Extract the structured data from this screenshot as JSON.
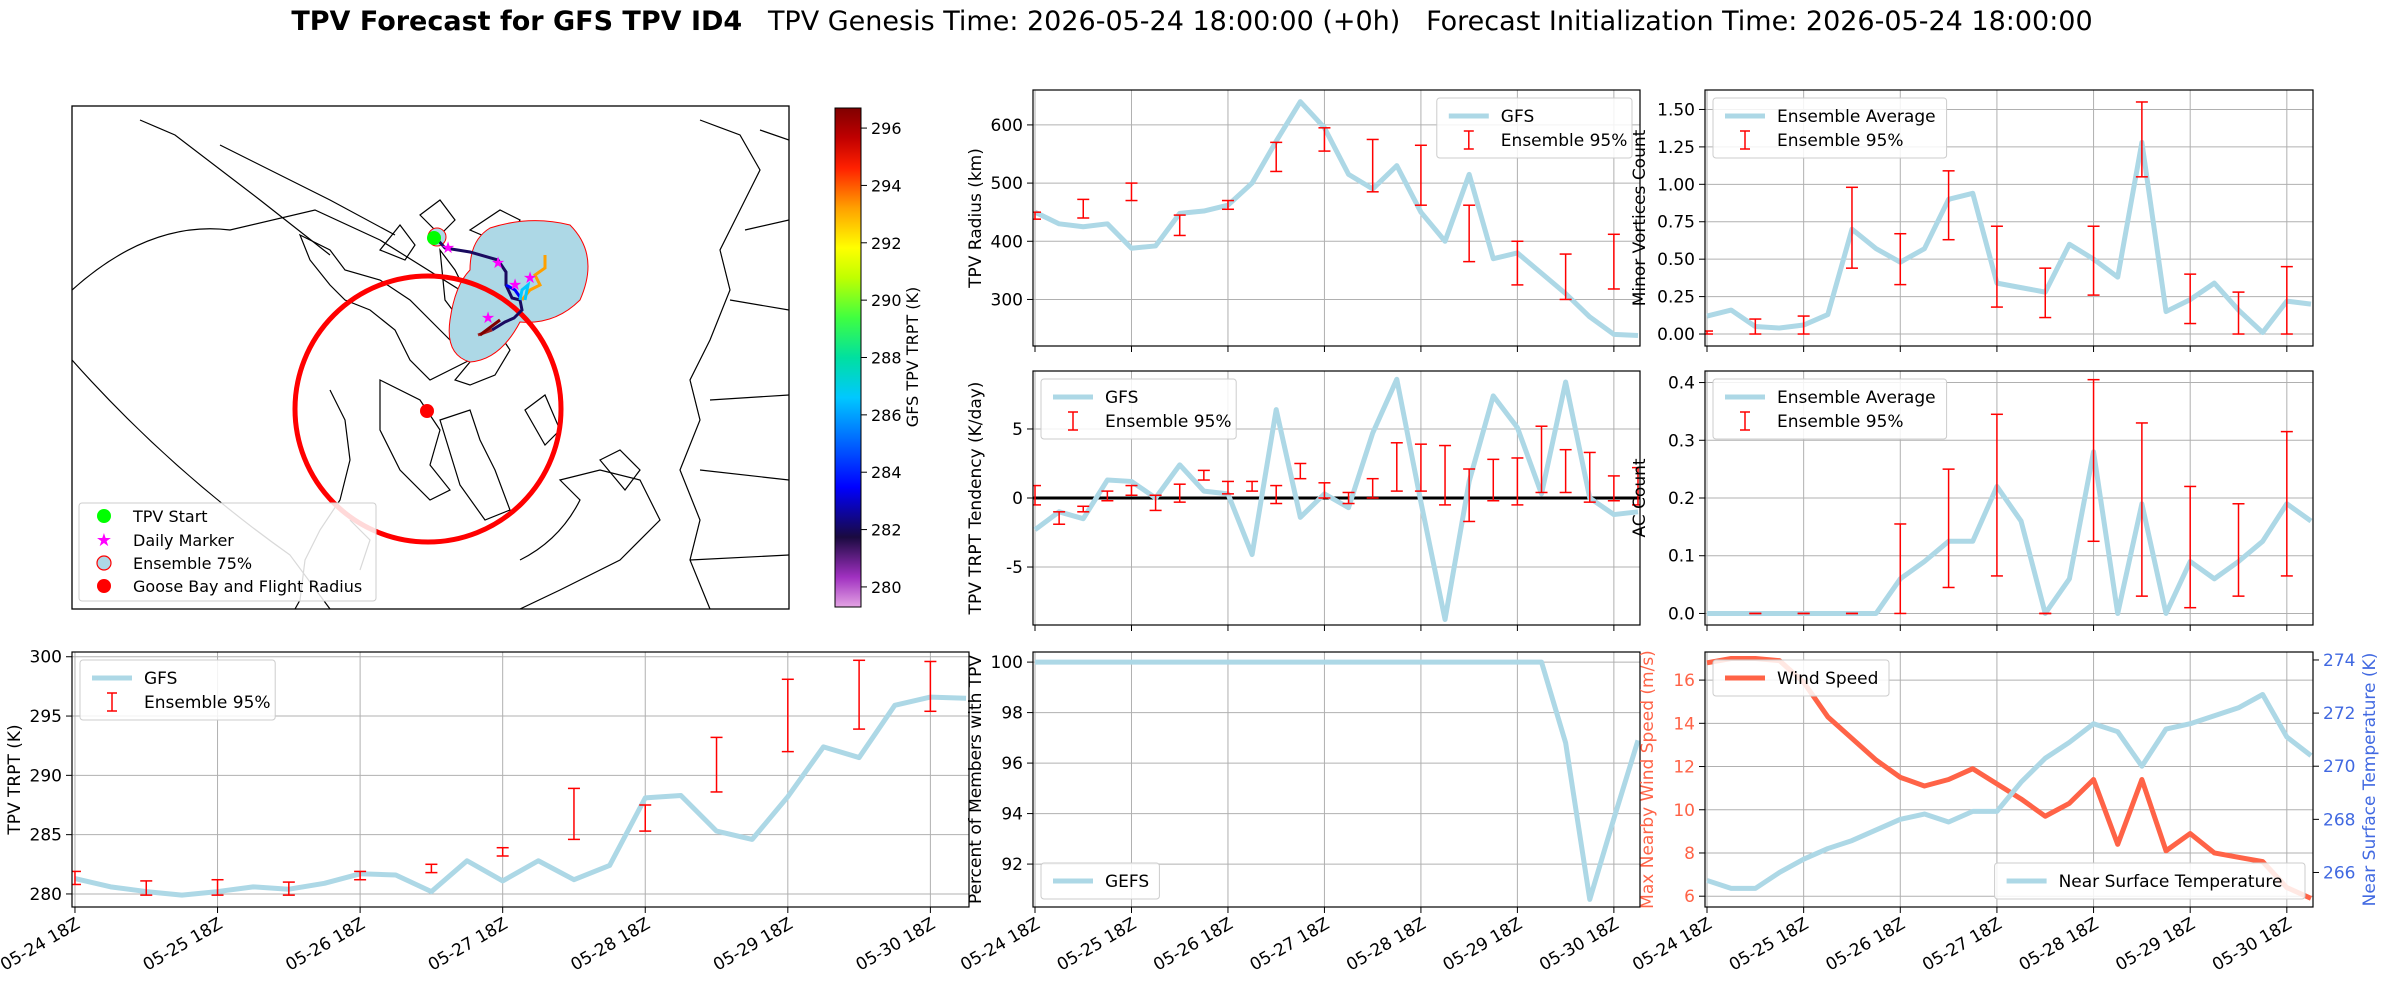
{
  "suptitle": {
    "bold": "TPV Forecast for GFS TPV ID4",
    "genesis": "TPV Genesis Time: 2026-05-24 18:00:00 (+0h)",
    "init": "Forecast Initialization Time: 2026-05-24 18:00:00"
  },
  "time_ticks": [
    "05-24 18Z",
    "05-25 18Z",
    "05-26 18Z",
    "05-27 18Z",
    "05-28 18Z",
    "05-29 18Z",
    "05-30 18Z"
  ],
  "colors": {
    "gfs": "#add8e6",
    "error": "#ff0000",
    "wind": "#ff6347",
    "temp_axis": "#4169e1",
    "start": "#00ff00",
    "daily": "#ff00ff"
  },
  "map": {
    "colorbar": {
      "label": "GFS TPV TRPT (K)",
      "ticks": [
        280,
        282,
        284,
        286,
        288,
        290,
        292,
        294,
        296
      ],
      "range": [
        279.3,
        296.7
      ]
    },
    "legend": [
      "TPV Start",
      "Daily Marker",
      "Ensemble 75%",
      "Goose Bay and Flight Radius"
    ]
  },
  "chart_data": [
    {
      "id": "radius",
      "type": "line",
      "ylabel": "TPV Radius (km)",
      "ylim": [
        220,
        660
      ],
      "yticks": [
        300,
        400,
        500,
        600
      ],
      "legend": [
        "GFS",
        "Ensemble 95%"
      ],
      "legend_loc": "upper right",
      "x_hours": [
        0,
        6,
        12,
        18,
        24,
        30,
        36,
        42,
        48,
        54,
        60,
        66,
        72,
        78,
        84,
        90,
        96,
        102,
        108,
        114,
        120,
        126,
        132,
        138,
        144,
        150
      ],
      "values": [
        450,
        430,
        425,
        430,
        388,
        392,
        448,
        452,
        462,
        500,
        572,
        640,
        595,
        515,
        490,
        530,
        450,
        400,
        515,
        370,
        380,
        345,
        310,
        270,
        240,
        238
      ],
      "error_bars": [
        {
          "x": 0,
          "lo": 438,
          "hi": 450
        },
        {
          "x": 12,
          "lo": 440,
          "hi": 472
        },
        {
          "x": 24,
          "lo": 470,
          "hi": 500
        },
        {
          "x": 36,
          "lo": 410,
          "hi": 445
        },
        {
          "x": 48,
          "lo": 455,
          "hi": 470
        },
        {
          "x": 60,
          "lo": 520,
          "hi": 570
        },
        {
          "x": 72,
          "lo": 555,
          "hi": 595
        },
        {
          "x": 84,
          "lo": 485,
          "hi": 575
        },
        {
          "x": 96,
          "lo": 462,
          "hi": 565
        },
        {
          "x": 108,
          "lo": 365,
          "hi": 462
        },
        {
          "x": 120,
          "lo": 325,
          "hi": 400
        },
        {
          "x": 132,
          "lo": 300,
          "hi": 378
        },
        {
          "x": 144,
          "lo": 318,
          "hi": 412
        }
      ]
    },
    {
      "id": "minor",
      "type": "line",
      "ylabel": "Minor Vortices Count",
      "ylim": [
        -0.08,
        1.63
      ],
      "yticks": [
        0.0,
        0.25,
        0.5,
        0.75,
        1.0,
        1.25,
        1.5
      ],
      "legend": [
        "Ensemble Average",
        "Ensemble 95%"
      ],
      "legend_loc": "upper left",
      "x_hours": [
        0,
        6,
        12,
        18,
        24,
        30,
        36,
        42,
        48,
        54,
        60,
        66,
        72,
        78,
        84,
        90,
        96,
        102,
        108,
        114,
        120,
        126,
        132,
        138,
        144,
        150
      ],
      "values": [
        0.12,
        0.16,
        0.05,
        0.04,
        0.06,
        0.13,
        0.7,
        0.57,
        0.48,
        0.57,
        0.9,
        0.94,
        0.34,
        0.31,
        0.28,
        0.6,
        0.5,
        0.38,
        1.28,
        0.15,
        0.23,
        0.34,
        0.16,
        0.01,
        0.22,
        0.2
      ],
      "error_bars": [
        {
          "x": 0,
          "lo": 0,
          "hi": 0.02
        },
        {
          "x": 12,
          "lo": 0,
          "hi": 0.1
        },
        {
          "x": 24,
          "lo": 0,
          "hi": 0.12
        },
        {
          "x": 36,
          "lo": 0.44,
          "hi": 0.98
        },
        {
          "x": 48,
          "lo": 0.33,
          "hi": 0.67
        },
        {
          "x": 60,
          "lo": 0.63,
          "hi": 1.09
        },
        {
          "x": 72,
          "lo": 0.18,
          "hi": 0.72
        },
        {
          "x": 84,
          "lo": 0.11,
          "hi": 0.44
        },
        {
          "x": 96,
          "lo": 0.26,
          "hi": 0.72
        },
        {
          "x": 108,
          "lo": 1.05,
          "hi": 1.55
        },
        {
          "x": 120,
          "lo": 0.07,
          "hi": 0.4
        },
        {
          "x": 132,
          "lo": 0,
          "hi": 0.28
        },
        {
          "x": 144,
          "lo": 0,
          "hi": 0.45
        }
      ]
    },
    {
      "id": "tendency",
      "type": "line",
      "ylabel": "TPV TRPT Tendency (K/day)",
      "ylim": [
        -9.2,
        9.2
      ],
      "yticks": [
        -5,
        0,
        5
      ],
      "legend": [
        "GFS",
        "Ensemble 95%"
      ],
      "legend_loc": "upper left",
      "x_hours": [
        0,
        6,
        12,
        18,
        24,
        30,
        36,
        42,
        48,
        54,
        60,
        66,
        72,
        78,
        84,
        90,
        96,
        102,
        108,
        114,
        120,
        126,
        132,
        138,
        144,
        150
      ],
      "values": [
        -2.3,
        -1.0,
        -1.5,
        1.3,
        1.2,
        0,
        2.4,
        0.5,
        0.3,
        -4.1,
        6.4,
        -1.4,
        0.3,
        -0.7,
        4.7,
        8.6,
        -0.3,
        -8.8,
        1.2,
        7.4,
        5.1,
        0.3,
        8.4,
        0,
        -1.2,
        -1.0
      ],
      "error_bars": [
        {
          "x": 0,
          "lo": -0.5,
          "hi": 0.9
        },
        {
          "x": 6,
          "lo": -1.9,
          "hi": -1.0
        },
        {
          "x": 12,
          "lo": -1.0,
          "hi": -0.6
        },
        {
          "x": 18,
          "lo": -0.2,
          "hi": 0.5
        },
        {
          "x": 24,
          "lo": 0.2,
          "hi": 0.9
        },
        {
          "x": 30,
          "lo": -0.9,
          "hi": 0.2
        },
        {
          "x": 36,
          "lo": -0.3,
          "hi": 1.0
        },
        {
          "x": 42,
          "lo": 1.3,
          "hi": 2.0
        },
        {
          "x": 48,
          "lo": 0.3,
          "hi": 1.2
        },
        {
          "x": 54,
          "lo": 0.5,
          "hi": 1.2
        },
        {
          "x": 60,
          "lo": -0.4,
          "hi": 0.9
        },
        {
          "x": 66,
          "lo": 1.4,
          "hi": 2.5
        },
        {
          "x": 72,
          "lo": 0,
          "hi": 1.1
        },
        {
          "x": 78,
          "lo": -0.4,
          "hi": 0.4
        },
        {
          "x": 84,
          "lo": 0,
          "hi": 1.4
        },
        {
          "x": 90,
          "lo": 0.5,
          "hi": 4.0
        },
        {
          "x": 96,
          "lo": 0.5,
          "hi": 3.9
        },
        {
          "x": 102,
          "lo": -0.5,
          "hi": 3.8
        },
        {
          "x": 108,
          "lo": -1.7,
          "hi": 2.1
        },
        {
          "x": 114,
          "lo": -0.2,
          "hi": 2.8
        },
        {
          "x": 120,
          "lo": -0.5,
          "hi": 2.9
        },
        {
          "x": 126,
          "lo": 0.4,
          "hi": 5.2
        },
        {
          "x": 132,
          "lo": 0.4,
          "hi": 3.5
        },
        {
          "x": 138,
          "lo": -0.3,
          "hi": 3.3
        },
        {
          "x": 144,
          "lo": -0.2,
          "hi": 1.6
        },
        {
          "x": 150,
          "lo": -0.5,
          "hi": 2.2
        }
      ],
      "zero_line": 0
    },
    {
      "id": "ac",
      "type": "line",
      "ylabel": "AC Count",
      "ylim": [
        -0.02,
        0.42
      ],
      "yticks": [
        0.0,
        0.1,
        0.2,
        0.3,
        0.4
      ],
      "legend": [
        "Ensemble Average",
        "Ensemble 95%"
      ],
      "legend_loc": "upper left",
      "x_hours": [
        0,
        6,
        12,
        18,
        24,
        30,
        36,
        42,
        48,
        54,
        60,
        66,
        72,
        78,
        84,
        90,
        96,
        102,
        108,
        114,
        120,
        126,
        132,
        138,
        144,
        150
      ],
      "values": [
        0,
        0,
        0,
        0,
        0,
        0,
        0,
        0,
        0.06,
        0.09,
        0.125,
        0.125,
        0.22,
        0.16,
        0,
        0.06,
        0.28,
        0,
        0.19,
        0,
        0.09,
        0.06,
        0.09,
        0.125,
        0.19,
        0.16
      ],
      "error_bars": [
        {
          "x": 12,
          "lo": 0,
          "hi": 0
        },
        {
          "x": 24,
          "lo": 0,
          "hi": 0
        },
        {
          "x": 36,
          "lo": 0,
          "hi": 0
        },
        {
          "x": 48,
          "lo": 0,
          "hi": 0.155
        },
        {
          "x": 60,
          "lo": 0.045,
          "hi": 0.25
        },
        {
          "x": 72,
          "lo": 0.065,
          "hi": 0.345
        },
        {
          "x": 84,
          "lo": 0,
          "hi": 0
        },
        {
          "x": 96,
          "lo": 0.125,
          "hi": 0.405
        },
        {
          "x": 108,
          "lo": 0.03,
          "hi": 0.33
        },
        {
          "x": 120,
          "lo": 0.01,
          "hi": 0.22
        },
        {
          "x": 132,
          "lo": 0.03,
          "hi": 0.19
        },
        {
          "x": 144,
          "lo": 0.065,
          "hi": 0.315
        }
      ]
    },
    {
      "id": "trpt",
      "type": "line",
      "ylabel": "TPV TRPT (K)",
      "ylim": [
        278.9,
        300.4
      ],
      "yticks": [
        280,
        285,
        290,
        295,
        300
      ],
      "legend": [
        "GFS",
        "Ensemble 95%"
      ],
      "legend_loc": "upper left",
      "x_hours": [
        0,
        6,
        12,
        18,
        24,
        30,
        36,
        42,
        48,
        54,
        60,
        66,
        72,
        78,
        84,
        90,
        96,
        102,
        108,
        114,
        120,
        126,
        132,
        138,
        144,
        150
      ],
      "values": [
        281.3,
        280.6,
        280.2,
        279.9,
        280.2,
        280.6,
        280.4,
        280.9,
        281.7,
        281.6,
        280.2,
        282.8,
        281.1,
        282.8,
        281.2,
        282.4,
        288.1,
        288.3,
        285.3,
        284.6,
        288.2,
        292.4,
        291.5,
        295.9,
        296.6,
        296.5
      ],
      "error_bars": [
        {
          "x": 0,
          "lo": 280.8,
          "hi": 281.9
        },
        {
          "x": 12,
          "lo": 279.9,
          "hi": 281.1
        },
        {
          "x": 24,
          "lo": 279.9,
          "hi": 281.2
        },
        {
          "x": 36,
          "lo": 279.9,
          "hi": 281.0
        },
        {
          "x": 48,
          "lo": 281.2,
          "hi": 281.9
        },
        {
          "x": 60,
          "lo": 281.8,
          "hi": 282.5
        },
        {
          "x": 72,
          "lo": 283.2,
          "hi": 283.9
        },
        {
          "x": 84,
          "lo": 284.6,
          "hi": 288.9
        },
        {
          "x": 96,
          "lo": 285.3,
          "hi": 287.5
        },
        {
          "x": 108,
          "lo": 288.6,
          "hi": 293.2
        },
        {
          "x": 120,
          "lo": 292.0,
          "hi": 298.1
        },
        {
          "x": 132,
          "lo": 293.9,
          "hi": 299.7
        },
        {
          "x": 144,
          "lo": 295.4,
          "hi": 299.6
        }
      ]
    },
    {
      "id": "percent",
      "type": "line",
      "ylabel": "Percent of Members with TPV",
      "ylim": [
        90.3,
        100.4
      ],
      "yticks": [
        92,
        94,
        96,
        98,
        100
      ],
      "legend": [
        "GEFS"
      ],
      "legend_loc": "lower left",
      "x_hours": [
        0,
        6,
        12,
        18,
        24,
        30,
        36,
        42,
        48,
        54,
        60,
        66,
        72,
        78,
        84,
        90,
        96,
        102,
        108,
        114,
        120,
        126,
        132,
        138,
        144,
        150
      ],
      "values": [
        100,
        100,
        100,
        100,
        100,
        100,
        100,
        100,
        100,
        100,
        100,
        100,
        100,
        100,
        100,
        100,
        100,
        100,
        100,
        100,
        100,
        100,
        96.8,
        90.6,
        93.8,
        96.9
      ],
      "error_bars": []
    },
    {
      "id": "wind_temp",
      "type": "line",
      "ylabel": "Max Nearby Wind Speed (m/s)",
      "ylim": [
        5.5,
        17.3
      ],
      "yticks": [
        6,
        8,
        10,
        12,
        14,
        16
      ],
      "y2label": "Near Surface Temperature (K)",
      "y2lim": [
        264.7,
        274.3
      ],
      "y2ticks": [
        266,
        268,
        270,
        272,
        274
      ],
      "legend": [
        "Wind Speed"
      ],
      "legend2": [
        "Near Surface Temperature"
      ],
      "x_hours": [
        0,
        6,
        12,
        18,
        24,
        30,
        36,
        42,
        48,
        54,
        60,
        66,
        72,
        78,
        84,
        90,
        96,
        102,
        108,
        114,
        120,
        126,
        132,
        138,
        144,
        150
      ],
      "series": [
        {
          "name": "Wind Speed",
          "axis": "left",
          "values": [
            16.8,
            17.0,
            17.0,
            16.9,
            15.9,
            14.3,
            13.3,
            12.3,
            11.5,
            11.1,
            11.4,
            11.9,
            11.2,
            10.5,
            9.7,
            10.3,
            11.4,
            8.4,
            11.4,
            8.1,
            8.9,
            8.0,
            7.8,
            7.6,
            6.4,
            5.9
          ]
        },
        {
          "name": "Near Surface Temperature",
          "axis": "right",
          "values": [
            265.7,
            265.4,
            265.4,
            266.0,
            266.5,
            266.9,
            267.2,
            267.6,
            268.0,
            268.2,
            267.9,
            268.3,
            268.3,
            269.4,
            270.3,
            270.9,
            271.6,
            271.3,
            270.0,
            271.4,
            271.6,
            271.9,
            272.2,
            272.7,
            271.1,
            270.4
          ]
        }
      ]
    }
  ]
}
